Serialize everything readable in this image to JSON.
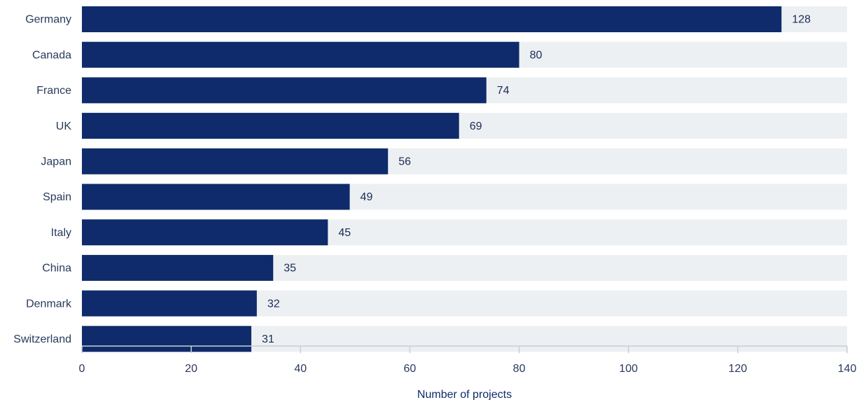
{
  "chart_data": {
    "type": "bar",
    "orientation": "horizontal",
    "categories": [
      "Germany",
      "Canada",
      "France",
      "UK",
      "Japan",
      "Spain",
      "Italy",
      "China",
      "Denmark",
      "Switzerland"
    ],
    "values": [
      128,
      80,
      74,
      69,
      56,
      49,
      45,
      35,
      32,
      31
    ],
    "title": "",
    "xlabel": "Number of projects",
    "ylabel": "",
    "xlim": [
      0,
      140
    ],
    "xticks": [
      0,
      20,
      40,
      60,
      80,
      100,
      120,
      140
    ],
    "data_labels": true,
    "grid": false,
    "colors": {
      "bar": "#0f2b6b",
      "track": "#edf0f2",
      "axis": "#c9ced6"
    }
  }
}
